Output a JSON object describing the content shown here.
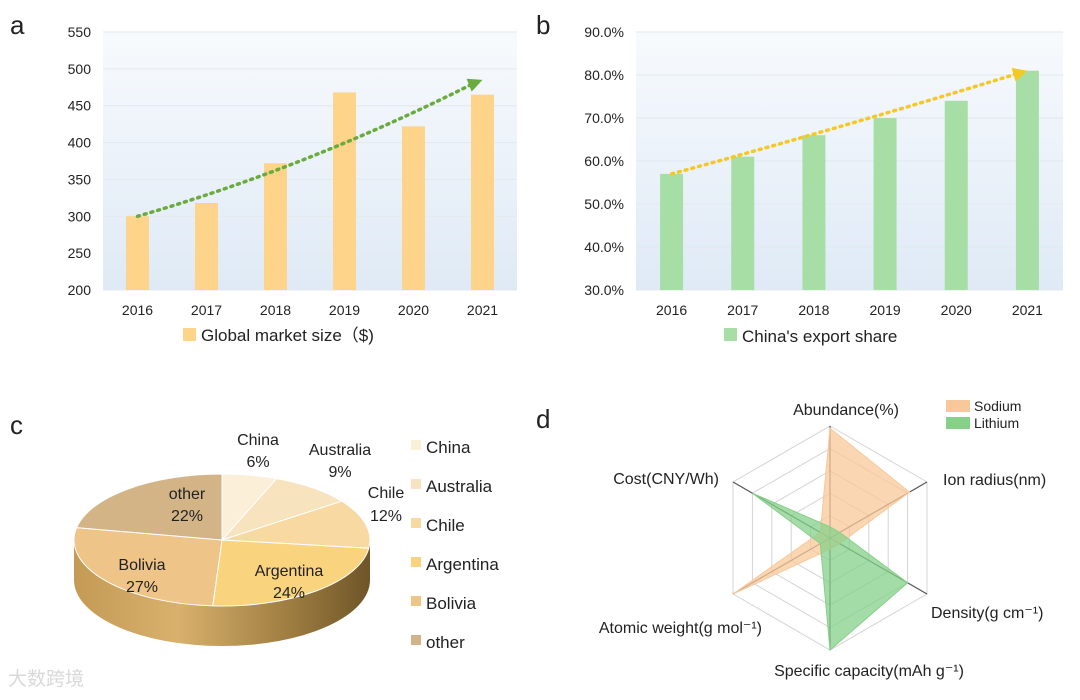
{
  "chart_data": [
    {
      "panel": "a",
      "type": "bar",
      "categories": [
        "2016",
        "2017",
        "2018",
        "2019",
        "2020",
        "2021"
      ],
      "series": [
        {
          "name": "Global market size（$)",
          "values": [
            300,
            318,
            372,
            468,
            422,
            465
          ],
          "color": "#fdd48a"
        }
      ],
      "ylim": [
        200,
        550
      ],
      "yticks": [
        "200",
        "250",
        "300",
        "350",
        "400",
        "450",
        "500",
        "550"
      ],
      "trend_arrow": {
        "from": 300,
        "to": 485,
        "color": "#6aab3e"
      }
    },
    {
      "panel": "b",
      "type": "bar",
      "categories": [
        "2016",
        "2017",
        "2018",
        "2019",
        "2020",
        "2021"
      ],
      "series": [
        {
          "name": "China's export share",
          "values": [
            57,
            61,
            66,
            70,
            74,
            81
          ],
          "color": "#a6dea6"
        }
      ],
      "ylim": [
        30,
        90
      ],
      "yticks": [
        "30.0%",
        "40.0%",
        "50.0%",
        "60.0%",
        "70.0%",
        "80.0%",
        "90.0%"
      ],
      "trend_arrow": {
        "from": 57,
        "to": 81,
        "color": "#f5c822"
      }
    },
    {
      "panel": "c",
      "type": "pie",
      "slices": [
        {
          "label": "China",
          "pct_label": "6%",
          "value": 6,
          "color": "#fbefd8"
        },
        {
          "label": "Australia",
          "pct_label": "9%",
          "value": 9,
          "color": "#f8e3bf"
        },
        {
          "label": "Chile",
          "pct_label": "12%",
          "value": 12,
          "color": "#f8d9a2"
        },
        {
          "label": "Argentina",
          "pct_label": "24%",
          "value": 24,
          "color": "#f9d37e"
        },
        {
          "label": "Bolivia",
          "pct_label": "27%",
          "value": 27,
          "color": "#eec489"
        },
        {
          "label": "other",
          "pct_label": "22%",
          "value": 22,
          "color": "#d3b487"
        }
      ]
    },
    {
      "panel": "d",
      "type": "radar",
      "axes": [
        "Abundance(%)",
        "Ion radius(nm)",
        "Density(g cm⁻¹)",
        "Specific capacity(mAh g⁻¹)",
        "Atomic weight(g mol⁻¹)",
        "Cost(CNY/Wh)"
      ],
      "series": [
        {
          "name": "Sodium",
          "values": [
            0.98,
            0.82,
            0.1,
            0.1,
            1.0,
            0.1
          ],
          "color": "#f9c89a"
        },
        {
          "name": "Lithium",
          "values": [
            0.1,
            0.1,
            0.8,
            1.0,
            0.1,
            0.8
          ],
          "color": "#86d08a"
        }
      ]
    }
  ],
  "panel_letters": [
    "a",
    "b",
    "c",
    "d"
  ],
  "watermark": "大数跨境"
}
